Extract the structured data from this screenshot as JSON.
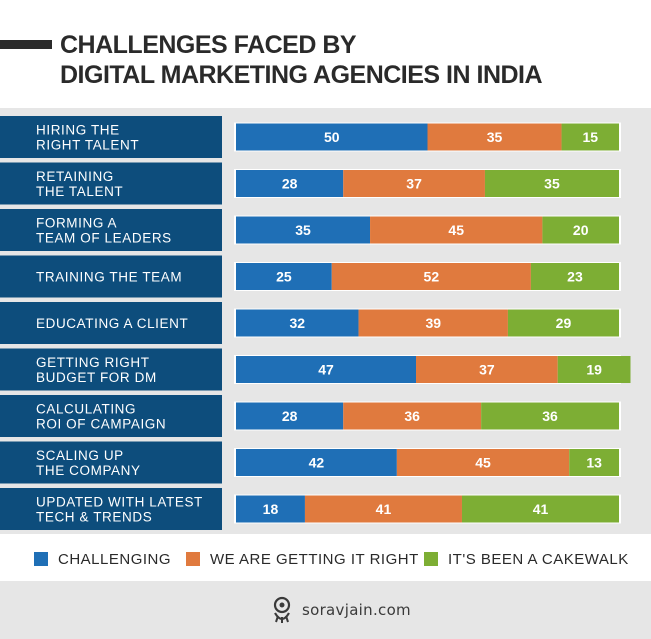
{
  "title": [
    "CHALLENGES FACED BY",
    "DIGITAL MARKETING AGENCIES IN INDIA"
  ],
  "colors": {
    "challenging": "#1f6fb6",
    "right": "#e07a3e",
    "cakewalk": "#7dae34",
    "label_bg": "#0d4d7c",
    "panel_bg": "#e6e6e6"
  },
  "legend": {
    "challenging": "CHALLENGING",
    "right": "WE ARE GETTING IT RIGHT",
    "cakewalk": "IT'S BEEN A CAKEWALK"
  },
  "chart_data": {
    "type": "bar",
    "orientation": "horizontal",
    "stacked": true,
    "title": "CHALLENGES FACED BY DIGITAL MARKETING AGENCIES IN INDIA",
    "categories": [
      [
        "HIRING THE",
        "RIGHT TALENT"
      ],
      [
        "RETAINING",
        "THE TALENT"
      ],
      [
        "FORMING A",
        "TEAM OF LEADERS"
      ],
      [
        "TRAINING THE TEAM"
      ],
      [
        "EDUCATING A CLIENT"
      ],
      [
        "GETTING RIGHT",
        "BUDGET FOR DM"
      ],
      [
        "CALCULATING",
        "ROI OF CAMPAIGN"
      ],
      [
        "SCALING UP",
        "THE COMPANY"
      ],
      [
        "UPDATED WITH LATEST",
        "TECH & TRENDS"
      ]
    ],
    "series": [
      {
        "name": "CHALLENGING",
        "values": [
          50,
          28,
          35,
          25,
          32,
          47,
          28,
          42,
          18
        ]
      },
      {
        "name": "WE ARE GETTING IT RIGHT",
        "values": [
          35,
          37,
          45,
          52,
          39,
          37,
          36,
          45,
          41
        ]
      },
      {
        "name": "IT'S BEEN A CAKEWALK",
        "values": [
          15,
          35,
          20,
          23,
          29,
          19,
          36,
          13,
          41
        ]
      }
    ],
    "xlim": [
      0,
      100
    ],
    "grid": false,
    "legend_position": "bottom"
  },
  "footer": {
    "brand": "soravjain.com"
  }
}
